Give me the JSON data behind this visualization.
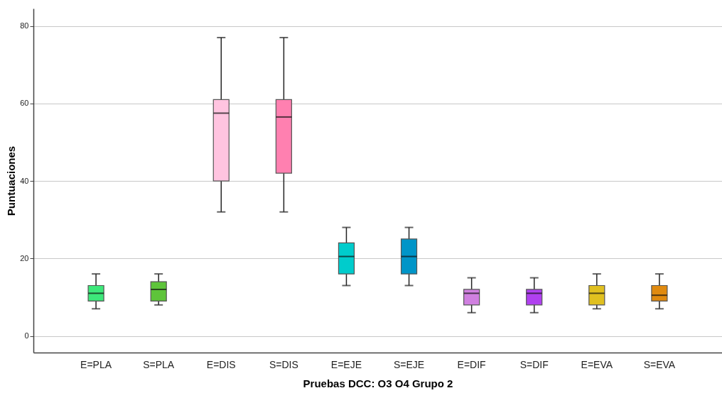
{
  "chart_data": {
    "type": "box",
    "xlabel": "Pruebas DCC: O3 O4 Grupo 2",
    "ylabel": "Puntuaciones",
    "categories": [
      "E=PLA",
      "S=PLA",
      "E=DIS",
      "S=DIS",
      "E=EJE",
      "S=EJE",
      "E=DIF",
      "S=DIF",
      "E=EVA",
      "S=EVA"
    ],
    "colors": [
      "#3de87a",
      "#5ec43a",
      "#ffc4e0",
      "#ff80b0",
      "#00cccc",
      "#0095c8",
      "#d080e0",
      "#b040f0",
      "#e0c020",
      "#e08a10"
    ],
    "boxes": [
      {
        "low": 7,
        "q1": 9,
        "median": 11,
        "q3": 13,
        "high": 16
      },
      {
        "low": 8,
        "q1": 9,
        "median": 12,
        "q3": 14,
        "high": 16
      },
      {
        "low": 32,
        "q1": 40,
        "median": 57.5,
        "q3": 61,
        "high": 77
      },
      {
        "low": 32,
        "q1": 42,
        "median": 56.5,
        "q3": 61,
        "high": 77
      },
      {
        "low": 13,
        "q1": 16,
        "median": 20.5,
        "q3": 24,
        "high": 28
      },
      {
        "low": 13,
        "q1": 16,
        "median": 20.5,
        "q3": 25,
        "high": 28
      },
      {
        "low": 6,
        "q1": 8,
        "median": 11,
        "q3": 12,
        "high": 15
      },
      {
        "low": 6,
        "q1": 8,
        "median": 11,
        "q3": 12,
        "high": 15
      },
      {
        "low": 7,
        "q1": 8,
        "median": 11,
        "q3": 13,
        "high": 16
      },
      {
        "low": 7,
        "q1": 9,
        "median": 10.5,
        "q3": 13,
        "high": 16
      }
    ],
    "ylim": [
      -4.3,
      84.5
    ],
    "yticks": [
      0,
      20,
      40,
      60,
      80
    ],
    "grid": "y",
    "legend": false
  }
}
